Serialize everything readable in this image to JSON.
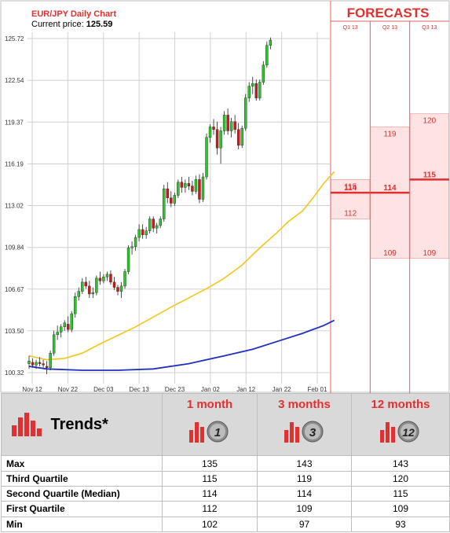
{
  "chart": {
    "title": "EUR/JPY Daily Chart",
    "price_label": "Current price:",
    "price_value": "125.59",
    "forecasts_title": "FORECASTS"
  },
  "chart_data": {
    "type": "candlestick",
    "y_ticks": [
      "125.72",
      "122.54",
      "119.37",
      "116.19",
      "113.02",
      "109.84",
      "106.67",
      "103.50",
      "100.32"
    ],
    "ylim": [
      100.32,
      125.72
    ],
    "x_ticks": [
      "Nov 12",
      "Nov 22",
      "Dec 03",
      "Dec 13",
      "Dec 23",
      "Jan 02",
      "Jan 12",
      "Jan 22",
      "Feb 01"
    ],
    "candles": [
      [
        101.0,
        101.6,
        100.6,
        101.2
      ],
      [
        101.1,
        101.4,
        100.7,
        100.9
      ],
      [
        100.9,
        101.3,
        100.6,
        101.1
      ],
      [
        101.1,
        101.5,
        100.8,
        101.0
      ],
      [
        101.0,
        101.3,
        100.7,
        100.9
      ],
      [
        100.8,
        101.2,
        100.2,
        100.7
      ],
      [
        100.7,
        102.0,
        100.5,
        101.8
      ],
      [
        101.8,
        103.5,
        101.6,
        103.2
      ],
      [
        103.2,
        103.9,
        102.8,
        103.4
      ],
      [
        103.4,
        104.0,
        103.0,
        103.8
      ],
      [
        103.8,
        104.3,
        103.5,
        104.1
      ],
      [
        104.0,
        104.6,
        103.4,
        103.6
      ],
      [
        103.6,
        105.0,
        103.4,
        104.8
      ],
      [
        104.8,
        106.4,
        104.5,
        106.1
      ],
      [
        106.1,
        106.8,
        105.8,
        106.5
      ],
      [
        106.5,
        107.5,
        106.3,
        107.2
      ],
      [
        107.2,
        107.6,
        106.7,
        106.9
      ],
      [
        106.9,
        107.3,
        106.0,
        106.3
      ],
      [
        106.3,
        106.8,
        106.0,
        106.4
      ],
      [
        106.4,
        107.7,
        106.2,
        107.5
      ],
      [
        107.5,
        108.0,
        107.0,
        107.3
      ],
      [
        107.3,
        107.8,
        107.1,
        107.6
      ],
      [
        107.6,
        108.0,
        107.3,
        107.8
      ],
      [
        107.8,
        108.1,
        107.0,
        107.2
      ],
      [
        107.2,
        107.6,
        106.6,
        106.8
      ],
      [
        106.8,
        107.0,
        106.2,
        106.5
      ],
      [
        106.5,
        107.2,
        106.0,
        106.9
      ],
      [
        106.9,
        108.2,
        106.7,
        108.0
      ],
      [
        108.0,
        110.0,
        107.8,
        109.8
      ],
      [
        109.8,
        110.3,
        109.3,
        109.9
      ],
      [
        109.9,
        110.8,
        109.6,
        110.6
      ],
      [
        110.6,
        111.6,
        110.3,
        111.2
      ],
      [
        111.2,
        111.6,
        110.5,
        110.8
      ],
      [
        110.8,
        111.4,
        110.5,
        111.1
      ],
      [
        111.1,
        112.2,
        110.9,
        112.0
      ],
      [
        112.0,
        112.2,
        111.0,
        111.3
      ],
      [
        111.3,
        111.7,
        110.9,
        111.5
      ],
      [
        111.5,
        112.2,
        111.3,
        112.0
      ],
      [
        112.0,
        114.6,
        111.8,
        114.3
      ],
      [
        114.3,
        114.8,
        113.2,
        113.6
      ],
      [
        113.6,
        114.1,
        112.9,
        113.2
      ],
      [
        113.2,
        114.0,
        113.0,
        113.8
      ],
      [
        113.8,
        115.0,
        113.6,
        114.8
      ],
      [
        114.8,
        115.2,
        114.0,
        114.4
      ],
      [
        114.4,
        115.0,
        114.0,
        114.7
      ],
      [
        114.7,
        115.2,
        114.2,
        114.5
      ],
      [
        114.5,
        114.9,
        113.8,
        114.1
      ],
      [
        114.1,
        115.3,
        113.9,
        115.0
      ],
      [
        115.0,
        115.4,
        113.2,
        113.5
      ],
      [
        113.5,
        115.5,
        113.3,
        115.2
      ],
      [
        115.2,
        118.5,
        115.0,
        118.2
      ],
      [
        118.2,
        119.2,
        117.8,
        119.0
      ],
      [
        119.0,
        119.6,
        118.4,
        118.8
      ],
      [
        118.8,
        119.4,
        116.9,
        117.4
      ],
      [
        117.4,
        119.0,
        116.2,
        118.7
      ],
      [
        118.7,
        120.2,
        118.4,
        119.9
      ],
      [
        119.9,
        120.4,
        118.4,
        118.7
      ],
      [
        118.7,
        119.7,
        118.2,
        119.4
      ],
      [
        119.4,
        119.9,
        118.5,
        118.8
      ],
      [
        118.8,
        119.3,
        117.3,
        117.6
      ],
      [
        117.6,
        119.1,
        117.4,
        118.9
      ],
      [
        118.9,
        121.5,
        118.7,
        121.2
      ],
      [
        121.2,
        122.4,
        120.9,
        122.1
      ],
      [
        122.1,
        122.8,
        121.5,
        122.3
      ],
      [
        122.3,
        122.6,
        121.0,
        121.2
      ],
      [
        121.2,
        122.6,
        121.0,
        122.4
      ],
      [
        122.4,
        124.0,
        122.2,
        123.7
      ],
      [
        123.7,
        125.5,
        123.5,
        125.2
      ],
      [
        125.2,
        125.8,
        124.9,
        125.6
      ]
    ],
    "sma_short": [
      [
        0,
        101.6
      ],
      [
        5,
        101.3
      ],
      [
        10,
        101.4
      ],
      [
        15,
        101.8
      ],
      [
        20,
        102.5
      ],
      [
        30,
        103.8
      ],
      [
        40,
        105.3
      ],
      [
        50,
        106.7
      ],
      [
        55,
        107.5
      ],
      [
        60,
        108.5
      ],
      [
        65,
        109.8
      ],
      [
        70,
        111.0
      ],
      [
        73,
        111.8
      ],
      [
        77,
        112.6
      ],
      [
        80,
        113.6
      ],
      [
        83,
        114.7
      ],
      [
        86,
        115.6
      ]
    ],
    "sma_long": [
      [
        0,
        100.8
      ],
      [
        5,
        100.6
      ],
      [
        15,
        100.5
      ],
      [
        25,
        100.5
      ],
      [
        35,
        100.6
      ],
      [
        45,
        101.0
      ],
      [
        55,
        101.6
      ],
      [
        63,
        102.1
      ],
      [
        70,
        102.7
      ],
      [
        77,
        103.3
      ],
      [
        83,
        103.9
      ],
      [
        86,
        104.3
      ]
    ],
    "forecast_columns": [
      {
        "label": "Q1 13",
        "q3": 115,
        "median": 114,
        "q1": 112
      },
      {
        "label": "Q2 13",
        "q3": 119,
        "median": 114,
        "q1": 109
      },
      {
        "label": "Q3 13",
        "q3": 120,
        "median": 115,
        "q1": 109
      }
    ]
  },
  "table": {
    "trends_title": "Trends*",
    "periods": [
      {
        "label": "1 month",
        "badge": "1"
      },
      {
        "label": "3 months",
        "badge": "3"
      },
      {
        "label": "12 months",
        "badge": "12"
      }
    ],
    "rows": [
      {
        "label": "Max",
        "values": [
          "135",
          "143",
          "143"
        ]
      },
      {
        "label": "Third Quartile",
        "values": [
          "115",
          "119",
          "120"
        ]
      },
      {
        "label": "Second Quartile (Median)",
        "values": [
          "114",
          "114",
          "115"
        ]
      },
      {
        "label": "First Quartile",
        "values": [
          "112",
          "109",
          "109"
        ]
      },
      {
        "label": "Min",
        "values": [
          "102",
          "97",
          "93"
        ]
      }
    ]
  },
  "colors": {
    "up": "#28c828",
    "down": "#d01818",
    "sma_short": "#f5c518",
    "sma_long": "#1f2fbf",
    "forecast_line": "#e03030",
    "forecast_fill": "#fde3e3"
  }
}
